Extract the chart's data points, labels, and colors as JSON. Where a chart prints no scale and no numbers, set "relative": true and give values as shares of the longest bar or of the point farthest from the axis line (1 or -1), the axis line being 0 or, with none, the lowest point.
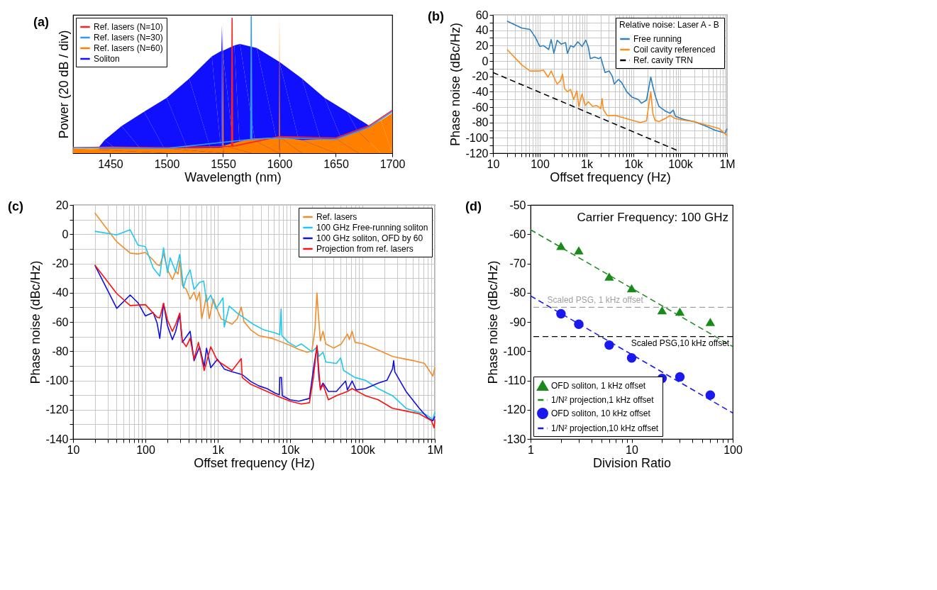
{
  "chart_data": [
    {
      "type": "line",
      "title": "(a)",
      "xlabel": "Wavelength (nm)",
      "ylabel": "Power (20 dB / div)",
      "relative": true,
      "xlim": [
        1417,
        1700
      ],
      "xticks": [
        1450,
        1500,
        1550,
        1600,
        1650,
        1700
      ],
      "grid": false,
      "legend": "top left",
      "series": [
        {
          "name": "Ref. lasers (N=10)",
          "color": "#ff2020",
          "x": [
            1417,
            1450,
            1500,
            1557.5,
            1558,
            1558.5,
            1600,
            1650,
            1680,
            1700
          ],
          "values": [
            0.04,
            0.045,
            0.04,
            0.05,
            0.976,
            0.05,
            0.12,
            0.11,
            0.2,
            0.31
          ]
        },
        {
          "name": "Ref. lasers (N=30)",
          "color": "#3399ff",
          "x": [
            1417,
            1450,
            1500,
            1574.5,
            1575,
            1575.5,
            1600,
            1650,
            1680,
            1700
          ],
          "values": [
            0.04,
            0.04,
            0.035,
            0.1,
            0.99,
            0.1,
            0.11,
            0.1,
            0.19,
            0.3
          ]
        },
        {
          "name": "Ref. lasers (N=60)",
          "type": "area",
          "color": "#ff8000",
          "x": [
            1417,
            1500,
            1549.5,
            1550,
            1550.5,
            1575,
            1599.5,
            1600,
            1600.5,
            1620,
            1650,
            1670,
            1690,
            1700
          ],
          "values": [
            0.035,
            0.035,
            0.04,
            0.97,
            0.055,
            0.105,
            0.115,
            1.0,
            0.115,
            0.095,
            0.105,
            0.155,
            0.237,
            0.29
          ]
        },
        {
          "name": "Soliton",
          "type": "area",
          "color": "#1010ff",
          "x": [
            1440,
            1445,
            1460,
            1480,
            1500,
            1520,
            1540,
            1548.5,
            1549,
            1549.5,
            1560,
            1565,
            1580,
            1600,
            1620,
            1640,
            1660,
            1680
          ],
          "values": [
            0.045,
            0.095,
            0.196,
            0.3,
            0.4,
            0.54,
            0.7,
            0.74,
            0.925,
            0.74,
            0.78,
            0.79,
            0.76,
            0.66,
            0.54,
            0.4,
            0.3,
            0.196
          ]
        }
      ]
    },
    {
      "type": "line",
      "title": "(b)",
      "xlabel": "Offset frequency (Hz)",
      "ylabel": "Phase noise (dBc/Hz)",
      "legend_title": "Relative noise: Laser A - B",
      "log": "x",
      "grid": true,
      "legend": "top right",
      "xlim": [
        10,
        1000000
      ],
      "ylim": [
        -120,
        60
      ],
      "xticks": [
        10,
        {
          "value": 20,
          "label": null
        },
        {
          "value": 30,
          "label": null
        },
        {
          "value": 40,
          "label": null
        },
        {
          "value": 50,
          "label": null
        },
        {
          "value": 60,
          "label": null
        },
        {
          "value": 70,
          "label": null
        },
        {
          "value": 80,
          "label": null
        },
        {
          "value": 90,
          "label": null
        },
        100,
        {
          "value": 200,
          "label": null
        },
        {
          "value": 300,
          "label": null
        },
        {
          "value": 400,
          "label": null
        },
        {
          "value": 500,
          "label": null
        },
        {
          "value": 600,
          "label": null
        },
        {
          "value": 700,
          "label": null
        },
        {
          "value": 800,
          "label": null
        },
        {
          "value": 900,
          "label": null
        },
        {
          "value": 1000,
          "label": "1k"
        },
        {
          "value": 2000,
          "label": null
        },
        {
          "value": 3000,
          "label": null
        },
        {
          "value": 4000,
          "label": null
        },
        {
          "value": 5000,
          "label": null
        },
        {
          "value": 6000,
          "label": null
        },
        {
          "value": 7000,
          "label": null
        },
        {
          "value": 8000,
          "label": null
        },
        {
          "value": 9000,
          "label": null
        },
        {
          "value": 10000,
          "label": "10k"
        },
        {
          "value": 20000,
          "label": null
        },
        {
          "value": 30000,
          "label": null
        },
        {
          "value": 40000,
          "label": null
        },
        {
          "value": 50000,
          "label": null
        },
        {
          "value": 60000,
          "label": null
        },
        {
          "value": 70000,
          "label": null
        },
        {
          "value": 80000,
          "label": null
        },
        {
          "value": 90000,
          "label": null
        },
        {
          "value": 100000,
          "label": "100k"
        },
        {
          "value": 200000,
          "label": null
        },
        {
          "value": 300000,
          "label": null
        },
        {
          "value": 400000,
          "label": null
        },
        {
          "value": 500000,
          "label": null
        },
        {
          "value": 600000,
          "label": null
        },
        {
          "value": 700000,
          "label": null
        },
        {
          "value": 800000,
          "label": null
        },
        {
          "value": 900000,
          "label": null
        },
        {
          "value": 1000000,
          "label": "1M"
        }
      ],
      "yticks": [
        -120,
        {
          "value": -110,
          "label": null
        },
        -100,
        {
          "value": -90,
          "label": null
        },
        -80,
        {
          "value": -70,
          "label": null
        },
        -60,
        {
          "value": -50,
          "label": null
        },
        -40,
        {
          "value": -30,
          "label": null
        },
        -20,
        {
          "value": -10,
          "label": null
        },
        0,
        {
          "value": 10,
          "label": null
        },
        20,
        {
          "value": 30,
          "label": null
        },
        40,
        {
          "value": 50,
          "label": null
        },
        60
      ],
      "series": [
        {
          "name": "Free running",
          "color": "#2c7fc1",
          "x": [
            20,
            41,
            62,
            80,
            100,
            120,
            155,
            175,
            200,
            235,
            285,
            355,
            390,
            455,
            530,
            650,
            800,
            960,
            1090,
            1200,
            1480,
            1820,
            2000,
            2480,
            3040,
            3540,
            3900,
            4800,
            5600,
            7200,
            9300,
            12700,
            14800,
            19000,
            23500,
            26000,
            28800,
            35000,
            47500,
            61000,
            71000,
            79000,
            118000,
            197000,
            329000,
            550000,
            915000,
            1000000
          ],
          "values": [
            52,
            43,
            41,
            31,
            19,
            20,
            15,
            28,
            10,
            27,
            22,
            24,
            10,
            20,
            18,
            25,
            19,
            27,
            18,
            3,
            5,
            3,
            5,
            -15,
            -13,
            -20,
            -30,
            -24,
            -28,
            -40,
            -47,
            -50,
            -55,
            -51,
            -21,
            -33,
            -44,
            -59,
            -65,
            -68,
            -64,
            -72,
            -76,
            -79,
            -84,
            -90,
            -94,
            -88
          ]
        },
        {
          "name": "Coil cavity referenced",
          "color": "#ff8c1a",
          "x": [
            20,
            41,
            62,
            98,
            120,
            150,
            175,
            200,
            235,
            275,
            305,
            340,
            390,
            455,
            530,
            620,
            680,
            800,
            930,
            1090,
            1340,
            1650,
            2000,
            2150,
            2270,
            2750,
            4200,
            6300,
            9300,
            14000,
            19000,
            23500,
            26000,
            28800,
            35000,
            47500,
            61000,
            79000,
            118000,
            197000,
            450000,
            680000,
            1000000
          ],
          "values": [
            15,
            -5,
            -13,
            -13,
            -12,
            -21,
            -13,
            -21,
            -30,
            -26,
            -17,
            -36,
            -40,
            -37,
            -50,
            -39,
            -59,
            -43,
            -58,
            -53,
            -59,
            -58,
            -62,
            -49,
            -63,
            -71,
            -71,
            -74,
            -77,
            -80,
            -78,
            -40,
            -68,
            -77,
            -79,
            -75,
            -71,
            -75,
            -77,
            -79,
            -85,
            -88,
            -97
          ]
        },
        {
          "name": "Ref. cavity TRN",
          "color": "#000000",
          "line_style": "dashed",
          "x": [
            10,
            91000
          ],
          "values": [
            -15,
            -117
          ]
        }
      ]
    },
    {
      "type": "line",
      "title": "(c)",
      "xlabel": "Offset frequency (Hz)",
      "ylabel": "Phase noise (dBc/Hz)",
      "log": "x",
      "grid": true,
      "legend": "top right",
      "xlim": [
        10,
        1000000
      ],
      "ylim": [
        -140,
        20
      ],
      "xticks": [
        10,
        {
          "value": 20,
          "label": null
        },
        {
          "value": 30,
          "label": null
        },
        {
          "value": 40,
          "label": null
        },
        {
          "value": 50,
          "label": null
        },
        {
          "value": 60,
          "label": null
        },
        {
          "value": 70,
          "label": null
        },
        {
          "value": 80,
          "label": null
        },
        {
          "value": 90,
          "label": null
        },
        100,
        {
          "value": 200,
          "label": null
        },
        {
          "value": 300,
          "label": null
        },
        {
          "value": 400,
          "label": null
        },
        {
          "value": 500,
          "label": null
        },
        {
          "value": 600,
          "label": null
        },
        {
          "value": 700,
          "label": null
        },
        {
          "value": 800,
          "label": null
        },
        {
          "value": 900,
          "label": null
        },
        {
          "value": 1000,
          "label": "1k"
        },
        {
          "value": 2000,
          "label": null
        },
        {
          "value": 3000,
          "label": null
        },
        {
          "value": 4000,
          "label": null
        },
        {
          "value": 5000,
          "label": null
        },
        {
          "value": 6000,
          "label": null
        },
        {
          "value": 7000,
          "label": null
        },
        {
          "value": 8000,
          "label": null
        },
        {
          "value": 9000,
          "label": null
        },
        {
          "value": 10000,
          "label": "10k"
        },
        {
          "value": 20000,
          "label": null
        },
        {
          "value": 30000,
          "label": null
        },
        {
          "value": 40000,
          "label": null
        },
        {
          "value": 50000,
          "label": null
        },
        {
          "value": 60000,
          "label": null
        },
        {
          "value": 70000,
          "label": null
        },
        {
          "value": 80000,
          "label": null
        },
        {
          "value": 90000,
          "label": null
        },
        {
          "value": 100000,
          "label": "100k"
        },
        {
          "value": 200000,
          "label": null
        },
        {
          "value": 300000,
          "label": null
        },
        {
          "value": 400000,
          "label": null
        },
        {
          "value": 500000,
          "label": null
        },
        {
          "value": 600000,
          "label": null
        },
        {
          "value": 700000,
          "label": null
        },
        {
          "value": 800000,
          "label": null
        },
        {
          "value": 900000,
          "label": null
        },
        {
          "value": 1000000,
          "label": "1M"
        }
      ],
      "yticks": [
        -140,
        {
          "value": -130,
          "label": null
        },
        -120,
        {
          "value": -110,
          "label": null
        },
        -100,
        {
          "value": -90,
          "label": null
        },
        -80,
        {
          "value": -70,
          "label": null
        },
        -60,
        {
          "value": -50,
          "label": null
        },
        -40,
        {
          "value": -30,
          "label": null
        },
        -20,
        {
          "value": -10,
          "label": null
        },
        0,
        {
          "value": 10,
          "label": null
        },
        20
      ],
      "series": [
        {
          "name": "Ref. lasers",
          "color": "#f28c28",
          "x": [
            20,
            40.2,
            61.5,
            79,
            100,
            128,
            145,
            158,
            178,
            202,
            236,
            262,
            283,
            298,
            324,
            367,
            415,
            470,
            510,
            560,
            600,
            650,
            700,
            760,
            870,
            990,
            1110,
            1330,
            1580,
            1860,
            2110,
            2300,
            2870,
            3690,
            5600,
            7900,
            10000,
            13200,
            17200,
            20000,
            22000,
            23500,
            24500,
            26200,
            28500,
            31200,
            40000,
            51000,
            62000,
            66000,
            72000,
            79000,
            103000,
            158000,
            262000,
            400000,
            514000,
            722000,
            940000,
            1000000
          ],
          "values": [
            14.5,
            -5.2,
            -12.9,
            -13.5,
            -12.5,
            -17.7,
            -20.9,
            -21.5,
            -13.3,
            -24.3,
            -31,
            -25.3,
            -27.2,
            -18,
            -34.9,
            -37.7,
            -44.4,
            -39.6,
            -45.4,
            -39.6,
            -57.8,
            -50,
            -41.6,
            -57.8,
            -44.4,
            -52,
            -57.8,
            -59.7,
            -61.6,
            -57.8,
            -49.8,
            -59.7,
            -65.5,
            -69.3,
            -71.2,
            -74,
            -76,
            -78.8,
            -80.7,
            -79.8,
            -65.5,
            -40.2,
            -54,
            -73,
            -66.4,
            -75,
            -77.9,
            -75,
            -68.3,
            -72,
            -66.4,
            -74,
            -75,
            -78.8,
            -83.6,
            -85.5,
            -86.5,
            -88.4,
            -97,
            -91.3
          ]
        },
        {
          "name": "100 GHz Free-running soliton",
          "color": "#1ec8f0",
          "x": [
            20,
            40,
            61.5,
            79,
            100,
            128,
            158,
            178,
            202,
            220,
            262,
            298,
            336,
            367,
            415,
            470,
            560,
            640,
            700,
            800,
            950,
            1180,
            1230,
            1440,
            1860,
            2400,
            3100,
            4370,
            6100,
            7200,
            7500,
            7700,
            9500,
            12100,
            14300,
            20000,
            23500,
            25000,
            28500,
            31200,
            43600,
            50000,
            55000,
            79000,
            110000,
            165000,
            260000,
            400000,
            515000,
            720000,
            940000,
            1000000
          ],
          "values": [
            2,
            -0.5,
            3,
            -7.5,
            -8.5,
            -23,
            -28.7,
            -9.4,
            -26.3,
            -16.1,
            -25.7,
            -13.8,
            -36.8,
            -29.7,
            -24.4,
            -37.7,
            -33,
            -32,
            -46.3,
            -41.6,
            -51,
            -43.5,
            -63.5,
            -49.2,
            -54,
            -57.8,
            -61.6,
            -65.5,
            -67.4,
            -68.7,
            -51,
            -69.3,
            -74,
            -76.9,
            -75,
            -80.4,
            -77,
            -83.6,
            -80.7,
            -87.4,
            -88.4,
            -84.6,
            -93.2,
            -98,
            -99.9,
            -105.6,
            -110.4,
            -119,
            -120.9,
            -122.8,
            -126.6,
            -121.8
          ]
        },
        {
          "name": "100 GHz soliton, OFD by 60",
          "color": "#1010e0",
          "x": [
            20,
            40.2,
            61.5,
            79,
            100,
            128,
            145,
            158,
            178,
            202,
            236,
            262,
            298,
            324,
            367,
            415,
            470,
            560,
            650,
            700,
            800,
            990,
            1230,
            1580,
            2180,
            2870,
            3690,
            4800,
            6100,
            7100,
            7200,
            7600,
            7800,
            10000,
            13200,
            18500,
            21000,
            23500,
            25000,
            26200,
            28500,
            33800,
            43600,
            58500,
            62000,
            72000,
            82000,
            110000,
            165000,
            218000,
            260000,
            270000,
            280000,
            400000,
            610000,
            800000,
            940000,
            1000000
          ],
          "values": [
            -21.1,
            -50.7,
            -41.6,
            -46.9,
            -55.9,
            -53.6,
            -60.7,
            -71.2,
            -47.3,
            -62.6,
            -72.1,
            -66.4,
            -54.9,
            -74,
            -70.2,
            -66.4,
            -86.5,
            -77,
            -90.3,
            -77.9,
            -91.3,
            -85.5,
            -92.2,
            -94.1,
            -96,
            -100.8,
            -103.7,
            -105.6,
            -108.5,
            -109.8,
            -98,
            -98,
            -110.4,
            -113.2,
            -114.2,
            -112.3,
            -92.2,
            -76.9,
            -97.9,
            -105.2,
            -101.8,
            -107.5,
            -107.5,
            -100.4,
            -106.5,
            -100.4,
            -106.5,
            -105.6,
            -101.8,
            -99.9,
            -92.2,
            -86.5,
            -94.1,
            -107.5,
            -119,
            -125.7,
            -127.6,
            -124.7
          ]
        },
        {
          "name": "Projection from ref. lasers",
          "color": "#ff1010",
          "x": [
            20,
            40.2,
            61.5,
            100,
            145,
            158,
            178,
            202,
            236,
            262,
            298,
            324,
            367,
            415,
            470,
            540,
            650,
            800,
            990,
            1580,
            2110,
            2180,
            2870,
            4800,
            7100,
            10000,
            14300,
            18500,
            21000,
            23500,
            26200,
            28500,
            33800,
            43600,
            62000,
            72000,
            110000,
            165000,
            260000,
            400000,
            610000,
            900000,
            980000,
            1000000
          ],
          "values": [
            -21.1,
            -40.6,
            -48.8,
            -48.2,
            -56.8,
            -57.2,
            -47.3,
            -58.8,
            -66.4,
            -61.6,
            -54,
            -73.1,
            -76.9,
            -71.2,
            -85.5,
            -74,
            -93.2,
            -77,
            -86.5,
            -93.2,
            -85.1,
            -98,
            -102.7,
            -107.5,
            -111.3,
            -114.2,
            -116.1,
            -115.2,
            -98,
            -76,
            -106.5,
            -102.7,
            -113.2,
            -110.4,
            -107.5,
            -105.6,
            -110.4,
            -113.2,
            -119,
            -120.9,
            -122.8,
            -127.6,
            -132.4,
            -126.6
          ]
        }
      ]
    },
    {
      "type": "scatter",
      "title": "(d)",
      "xlabel": "Division Ratio",
      "ylabel": "Phase noise (dBc/Hz)",
      "log": "x",
      "grid": false,
      "legend": "bottom left",
      "annotations": [
        "Carrier Frequency: 100 GHz"
      ],
      "xlim": [
        1,
        100
      ],
      "ylim": [
        -130,
        -50
      ],
      "xticks": [
        1,
        {
          "value": 2,
          "label": null
        },
        {
          "value": 3,
          "label": null
        },
        {
          "value": 4,
          "label": null
        },
        {
          "value": 5,
          "label": null
        },
        {
          "value": 6,
          "label": null
        },
        {
          "value": 7,
          "label": null
        },
        {
          "value": 8,
          "label": null
        },
        {
          "value": 9,
          "label": null
        },
        10,
        {
          "value": 20,
          "label": null
        },
        {
          "value": 30,
          "label": null
        },
        {
          "value": 40,
          "label": null
        },
        {
          "value": 50,
          "label": null
        },
        {
          "value": 60,
          "label": null
        },
        {
          "value": 70,
          "label": null
        },
        {
          "value": 80,
          "label": null
        },
        {
          "value": 90,
          "label": null
        },
        100
      ],
      "yticks": [
        -130,
        -120,
        -110,
        -100,
        -90,
        -80,
        -70,
        -60,
        -50
      ],
      "ref_lines": [
        {
          "axis": "y",
          "value": -85,
          "label": "Scaled PSG, 1 kHz offset",
          "color": "#a0a0a0",
          "line_style": "dashed"
        },
        {
          "axis": "y",
          "value": -95,
          "label": "Scaled PSG,10 kHz offset",
          "color": "#000000",
          "line_style": "dashed"
        }
      ],
      "series": [
        {
          "name": "OFD soliton, 1 kHz offset",
          "color": "#1a8a1a",
          "marker": "triangle",
          "x": [
            2,
            3,
            6,
            10,
            20,
            30,
            60
          ],
          "values": [
            -64,
            -65.5,
            -74.5,
            -78.5,
            -86,
            -86.5,
            -90
          ]
        },
        {
          "name": "1/N² projection,1 kHz offset",
          "type": "line",
          "line_style": "dashed",
          "color": "#1a8a1a",
          "x": [
            1,
            100
          ],
          "values": [
            -58.5,
            -98.4
          ]
        },
        {
          "name": "OFD soliton, 10 kHz offset",
          "color": "#1a1aee",
          "marker": "circle",
          "x": [
            2,
            3,
            6,
            10,
            20,
            30,
            60
          ],
          "values": [
            -87.2,
            -90.8,
            -97.9,
            -102.3,
            -109.3,
            -108.8,
            -115
          ]
        },
        {
          "name": "1/N² projection,10 kHz offset",
          "type": "line",
          "line_style": "dashed",
          "color": "#1a1aee",
          "x": [
            1,
            100
          ],
          "values": [
            -81.1,
            -121.1
          ]
        }
      ]
    }
  ]
}
